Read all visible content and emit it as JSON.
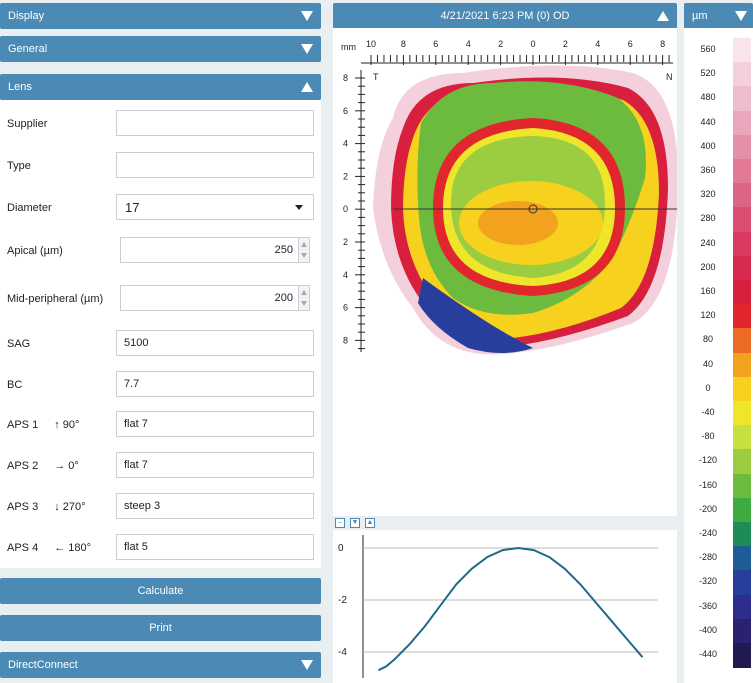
{
  "left_panel": {
    "display_label": "Display",
    "general_label": "General",
    "lens_label": "Lens",
    "directconnect_label": "DirectConnect",
    "calculate_label": "Calculate",
    "print_label": "Print"
  },
  "lens": {
    "supplier": {
      "label": "Supplier",
      "value": ""
    },
    "type": {
      "label": "Type",
      "value": ""
    },
    "diameter": {
      "label": "Diameter",
      "value": "17"
    },
    "apical": {
      "label": "Apical (µm)",
      "value": "250"
    },
    "mid_peripheral": {
      "label": "Mid-peripheral (µm)",
      "value": "200"
    },
    "sag": {
      "label": "SAG",
      "value": "5100"
    },
    "bc": {
      "label": "BC",
      "value": "7.7"
    },
    "aps1": {
      "label": "APS 1",
      "arrow": "↑",
      "angle": "90°",
      "value": "flat 7"
    },
    "aps2": {
      "label": "APS 2",
      "arrow": "→",
      "angle": "0°",
      "value": "flat 7"
    },
    "aps3": {
      "label": "APS 3",
      "arrow": "↓",
      "angle": "270°",
      "value": "steep 3"
    },
    "aps4": {
      "label": "APS 4",
      "arrow": "←",
      "angle": "180°",
      "value": "flat 5"
    }
  },
  "map": {
    "header": "4/21/2021 6:23 PM (0) OD",
    "unit_mm": "mm",
    "temporal": "T",
    "nasal": "N",
    "x_ticks": [
      "10",
      "8",
      "6",
      "4",
      "2",
      "0",
      "2",
      "4",
      "6",
      "8"
    ],
    "y_ticks": [
      "8",
      "6",
      "4",
      "2",
      "0",
      "2",
      "4",
      "6",
      "8"
    ]
  },
  "scale": {
    "unit": "µm",
    "items": [
      {
        "label": "560",
        "color": "#f7e4ec"
      },
      {
        "label": "520",
        "color": "#f3d0dc"
      },
      {
        "label": "480",
        "color": "#efbccc"
      },
      {
        "label": "440",
        "color": "#eaa6ba"
      },
      {
        "label": "400",
        "color": "#e690a8"
      },
      {
        "label": "360",
        "color": "#e27a96"
      },
      {
        "label": "320",
        "color": "#de6484"
      },
      {
        "label": "280",
        "color": "#da4e72"
      },
      {
        "label": "240",
        "color": "#d83a60"
      },
      {
        "label": "200",
        "color": "#d62a50"
      },
      {
        "label": "160",
        "color": "#d91f3e"
      },
      {
        "label": "120",
        "color": "#e2262e"
      },
      {
        "label": "80",
        "color": "#ec6a22"
      },
      {
        "label": "40",
        "color": "#f3a21e"
      },
      {
        "label": "0",
        "color": "#f6d11e"
      },
      {
        "label": "-40",
        "color": "#eee62a"
      },
      {
        "label": "-80",
        "color": "#c6e040"
      },
      {
        "label": "-120",
        "color": "#9ccc40"
      },
      {
        "label": "-160",
        "color": "#6cba3e"
      },
      {
        "label": "-200",
        "color": "#3eaa42"
      },
      {
        "label": "-240",
        "color": "#1f8c56"
      },
      {
        "label": "-280",
        "color": "#1e5c96"
      },
      {
        "label": "-320",
        "color": "#283e9c"
      },
      {
        "label": "-360",
        "color": "#2e2c8c"
      },
      {
        "label": "-400",
        "color": "#2a2270"
      },
      {
        "label": "-440",
        "color": "#201a50"
      }
    ]
  },
  "profile": {
    "y_ticks": [
      "0",
      "-2",
      "-4"
    ]
  },
  "chart_data": {
    "type": "line",
    "title": "",
    "xlabel": "",
    "ylabel": "",
    "ylim": [
      -5,
      0.5
    ],
    "yticks": [
      0,
      -2,
      -4
    ],
    "series": [
      {
        "x": [
          -9,
          -8.5,
          -8,
          -7,
          -6,
          -5,
          -4,
          -3,
          -2,
          -1,
          0,
          1,
          2,
          3,
          4,
          5,
          6,
          7,
          8
        ],
        "values": [
          -4.7,
          -4.55,
          -4.3,
          -3.7,
          -3.0,
          -2.2,
          -1.4,
          -0.8,
          -0.35,
          -0.08,
          0.0,
          -0.08,
          -0.35,
          -0.8,
          -1.4,
          -2.1,
          -2.8,
          -3.5,
          -4.2
        ]
      }
    ]
  }
}
